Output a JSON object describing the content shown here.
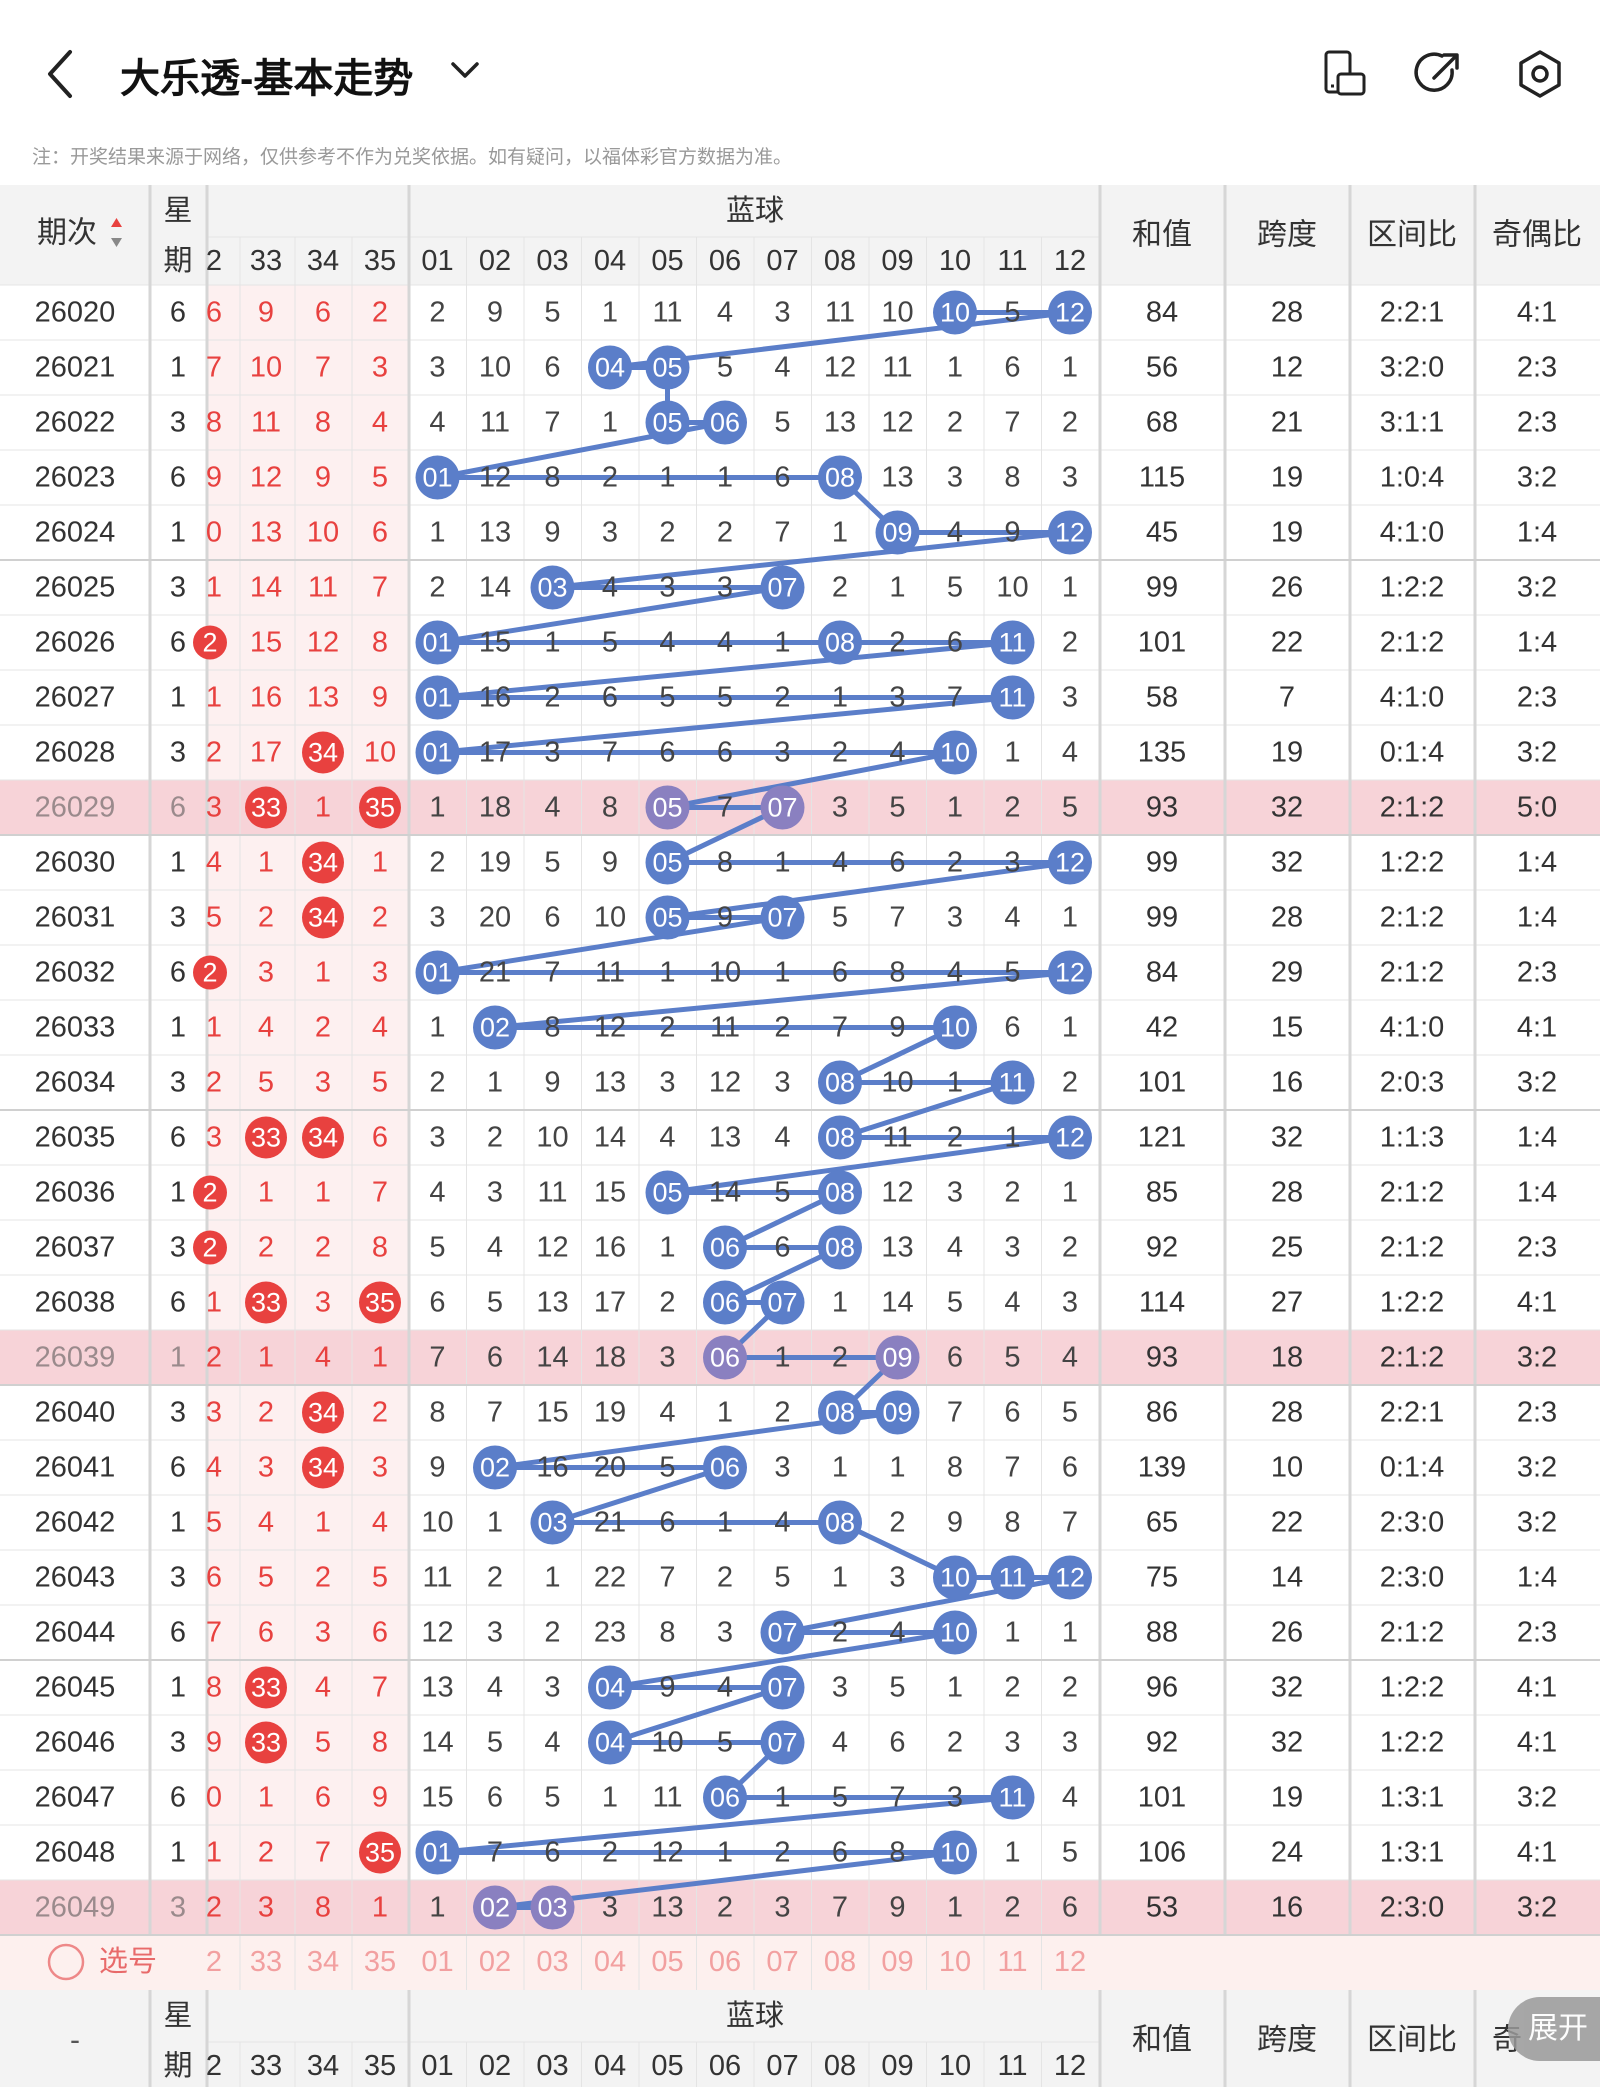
{
  "header": {
    "title": "大乐透-基本走势",
    "note": "注：开奖结果来源于网络，仅供参考不作为兑奖依据。如有疑问，以福体彩官方数据为准。",
    "icons": [
      "back-icon",
      "chevron-down-icon",
      "orientation-icon",
      "share-icon",
      "settings-icon"
    ]
  },
  "table": {
    "head_period": "期次",
    "head_weekday": [
      "星",
      "期"
    ],
    "head_blue": "蓝球",
    "head_sum": "和值",
    "head_span": "跨度",
    "head_zone": "区间比",
    "head_oddeven": "奇偶比",
    "head_oddeven_partial": "奇",
    "red_partial_header": "2",
    "red_headers": [
      "33",
      "34",
      "35"
    ],
    "blue_headers": [
      "01",
      "02",
      "03",
      "04",
      "05",
      "06",
      "07",
      "08",
      "09",
      "10",
      "11",
      "12"
    ],
    "select_label": "选号",
    "footer_dash": "-",
    "expand_label": "展开",
    "colors": {
      "red": "#e8413f",
      "blue": "#5b7ec9",
      "highlight": "#f7d3d8",
      "redbg": "#fdf0f0",
      "line": "#5b7ec9"
    },
    "rows": [
      {
        "p": "26020",
        "w": "6",
        "r": [
          "6",
          "9",
          "6",
          "2"
        ],
        "rh": [
          0,
          0,
          0,
          0
        ],
        "b": [
          "2",
          "9",
          "5",
          "1",
          "11",
          "4",
          "3",
          "11",
          "10",
          "10",
          "5",
          "12"
        ],
        "s": "84",
        "k": "28",
        "z": "2:2:1",
        "o": "4:1",
        "hl": false
      },
      {
        "p": "26021",
        "w": "1",
        "r": [
          "7",
          "10",
          "7",
          "3"
        ],
        "rh": [
          0,
          0,
          0,
          0
        ],
        "b": [
          "3",
          "10",
          "6",
          "04",
          "05",
          "5",
          "4",
          "12",
          "11",
          "1",
          "6",
          "1"
        ],
        "s": "56",
        "k": "12",
        "z": "3:2:0",
        "o": "2:3",
        "hl": false
      },
      {
        "p": "26022",
        "w": "3",
        "r": [
          "8",
          "11",
          "8",
          "4"
        ],
        "rh": [
          0,
          0,
          0,
          0
        ],
        "b": [
          "4",
          "11",
          "7",
          "1",
          "05",
          "06",
          "5",
          "13",
          "12",
          "2",
          "7",
          "2"
        ],
        "s": "68",
        "k": "21",
        "z": "3:1:1",
        "o": "2:3",
        "hl": false
      },
      {
        "p": "26023",
        "w": "6",
        "r": [
          "9",
          "12",
          "9",
          "5"
        ],
        "rh": [
          0,
          0,
          0,
          0
        ],
        "b": [
          "01",
          "12",
          "8",
          "2",
          "1",
          "1",
          "6",
          "08",
          "13",
          "3",
          "8",
          "3"
        ],
        "s": "115",
        "k": "19",
        "z": "1:0:4",
        "o": "3:2",
        "hl": false
      },
      {
        "p": "26024",
        "w": "1",
        "r": [
          "0",
          "13",
          "10",
          "6"
        ],
        "rh": [
          0,
          0,
          0,
          0
        ],
        "b": [
          "1",
          "13",
          "9",
          "3",
          "2",
          "2",
          "7",
          "1",
          "09",
          "4",
          "9",
          "12"
        ],
        "s": "45",
        "k": "19",
        "z": "4:1:0",
        "o": "1:4",
        "hl": false
      },
      {
        "p": "26025",
        "w": "3",
        "r": [
          "1",
          "14",
          "11",
          "7"
        ],
        "rh": [
          0,
          0,
          0,
          0
        ],
        "b": [
          "2",
          "14",
          "03",
          "4",
          "3",
          "3",
          "07",
          "2",
          "1",
          "5",
          "10",
          "1"
        ],
        "s": "99",
        "k": "26",
        "z": "1:2:2",
        "o": "3:2",
        "hl": false
      },
      {
        "p": "26026",
        "w": "6",
        "r": [
          "2",
          "15",
          "12",
          "8"
        ],
        "rh": [
          1,
          0,
          0,
          0
        ],
        "b": [
          "01",
          "15",
          "1",
          "5",
          "4",
          "4",
          "1",
          "08",
          "2",
          "6",
          "11",
          "2"
        ],
        "s": "101",
        "k": "22",
        "z": "2:1:2",
        "o": "1:4",
        "hl": false
      },
      {
        "p": "26027",
        "w": "1",
        "r": [
          "1",
          "16",
          "13",
          "9"
        ],
        "rh": [
          0,
          0,
          0,
          0
        ],
        "b": [
          "01",
          "16",
          "2",
          "6",
          "5",
          "5",
          "2",
          "1",
          "3",
          "7",
          "11",
          "3"
        ],
        "s": "58",
        "k": "7",
        "z": "4:1:0",
        "o": "2:3",
        "hl": false
      },
      {
        "p": "26028",
        "w": "3",
        "r": [
          "2",
          "17",
          "34",
          "10"
        ],
        "rh": [
          0,
          0,
          1,
          0
        ],
        "b": [
          "01",
          "17",
          "3",
          "7",
          "6",
          "6",
          "3",
          "2",
          "4",
          "10",
          "1",
          "4"
        ],
        "s": "135",
        "k": "19",
        "z": "0:1:4",
        "o": "3:2",
        "hl": false
      },
      {
        "p": "26029",
        "w": "6",
        "r": [
          "3",
          "33",
          "1",
          "35"
        ],
        "rh": [
          0,
          1,
          0,
          1
        ],
        "b": [
          "1",
          "18",
          "4",
          "8",
          "05",
          "7",
          "07",
          "3",
          "5",
          "1",
          "2",
          "5"
        ],
        "s": "93",
        "k": "32",
        "z": "2:1:2",
        "o": "5:0",
        "hl": true
      },
      {
        "p": "26030",
        "w": "1",
        "r": [
          "4",
          "1",
          "34",
          "1"
        ],
        "rh": [
          0,
          0,
          1,
          0
        ],
        "b": [
          "2",
          "19",
          "5",
          "9",
          "05",
          "8",
          "1",
          "4",
          "6",
          "2",
          "3",
          "12"
        ],
        "s": "99",
        "k": "32",
        "z": "1:2:2",
        "o": "1:4",
        "hl": false
      },
      {
        "p": "26031",
        "w": "3",
        "r": [
          "5",
          "2",
          "34",
          "2"
        ],
        "rh": [
          0,
          0,
          1,
          0
        ],
        "b": [
          "3",
          "20",
          "6",
          "10",
          "05",
          "9",
          "07",
          "5",
          "7",
          "3",
          "4",
          "1"
        ],
        "s": "99",
        "k": "28",
        "z": "2:1:2",
        "o": "1:4",
        "hl": false
      },
      {
        "p": "26032",
        "w": "6",
        "r": [
          "2",
          "3",
          "1",
          "3"
        ],
        "rh": [
          1,
          0,
          0,
          0
        ],
        "b": [
          "01",
          "21",
          "7",
          "11",
          "1",
          "10",
          "1",
          "6",
          "8",
          "4",
          "5",
          "12"
        ],
        "s": "84",
        "k": "29",
        "z": "2:1:2",
        "o": "2:3",
        "hl": false
      },
      {
        "p": "26033",
        "w": "1",
        "r": [
          "1",
          "4",
          "2",
          "4"
        ],
        "rh": [
          0,
          0,
          0,
          0
        ],
        "b": [
          "1",
          "02",
          "8",
          "12",
          "2",
          "11",
          "2",
          "7",
          "9",
          "10",
          "6",
          "1"
        ],
        "s": "42",
        "k": "15",
        "z": "4:1:0",
        "o": "4:1",
        "hl": false
      },
      {
        "p": "26034",
        "w": "3",
        "r": [
          "2",
          "5",
          "3",
          "5"
        ],
        "rh": [
          0,
          0,
          0,
          0
        ],
        "b": [
          "2",
          "1",
          "9",
          "13",
          "3",
          "12",
          "3",
          "08",
          "10",
          "1",
          "11",
          "2"
        ],
        "s": "101",
        "k": "16",
        "z": "2:0:3",
        "o": "3:2",
        "hl": false
      },
      {
        "p": "26035",
        "w": "6",
        "r": [
          "3",
          "33",
          "34",
          "6"
        ],
        "rh": [
          0,
          1,
          1,
          0
        ],
        "b": [
          "3",
          "2",
          "10",
          "14",
          "4",
          "13",
          "4",
          "08",
          "11",
          "2",
          "1",
          "12"
        ],
        "s": "121",
        "k": "32",
        "z": "1:1:3",
        "o": "1:4",
        "hl": false
      },
      {
        "p": "26036",
        "w": "1",
        "r": [
          "2",
          "1",
          "1",
          "7"
        ],
        "rh": [
          1,
          0,
          0,
          0
        ],
        "b": [
          "4",
          "3",
          "11",
          "15",
          "05",
          "14",
          "5",
          "08",
          "12",
          "3",
          "2",
          "1"
        ],
        "s": "85",
        "k": "28",
        "z": "2:1:2",
        "o": "1:4",
        "hl": false
      },
      {
        "p": "26037",
        "w": "3",
        "r": [
          "2",
          "2",
          "2",
          "8"
        ],
        "rh": [
          1,
          0,
          0,
          0
        ],
        "b": [
          "5",
          "4",
          "12",
          "16",
          "1",
          "06",
          "6",
          "08",
          "13",
          "4",
          "3",
          "2"
        ],
        "s": "92",
        "k": "25",
        "z": "2:1:2",
        "o": "2:3",
        "hl": false
      },
      {
        "p": "26038",
        "w": "6",
        "r": [
          "1",
          "33",
          "3",
          "35"
        ],
        "rh": [
          0,
          1,
          0,
          1
        ],
        "b": [
          "6",
          "5",
          "13",
          "17",
          "2",
          "06",
          "07",
          "1",
          "14",
          "5",
          "4",
          "3"
        ],
        "s": "114",
        "k": "27",
        "z": "1:2:2",
        "o": "4:1",
        "hl": false
      },
      {
        "p": "26039",
        "w": "1",
        "r": [
          "2",
          "1",
          "4",
          "1"
        ],
        "rh": [
          0,
          0,
          0,
          0
        ],
        "b": [
          "7",
          "6",
          "14",
          "18",
          "3",
          "06",
          "1",
          "2",
          "09",
          "6",
          "5",
          "4"
        ],
        "s": "93",
        "k": "18",
        "z": "2:1:2",
        "o": "3:2",
        "hl": true
      },
      {
        "p": "26040",
        "w": "3",
        "r": [
          "3",
          "2",
          "34",
          "2"
        ],
        "rh": [
          0,
          0,
          1,
          0
        ],
        "b": [
          "8",
          "7",
          "15",
          "19",
          "4",
          "1",
          "2",
          "08",
          "09",
          "7",
          "6",
          "5"
        ],
        "s": "86",
        "k": "28",
        "z": "2:2:1",
        "o": "2:3",
        "hl": false
      },
      {
        "p": "26041",
        "w": "6",
        "r": [
          "4",
          "3",
          "34",
          "3"
        ],
        "rh": [
          0,
          0,
          1,
          0
        ],
        "b": [
          "9",
          "02",
          "16",
          "20",
          "5",
          "06",
          "3",
          "1",
          "1",
          "8",
          "7",
          "6"
        ],
        "s": "139",
        "k": "10",
        "z": "0:1:4",
        "o": "3:2",
        "hl": false
      },
      {
        "p": "26042",
        "w": "1",
        "r": [
          "5",
          "4",
          "1",
          "4"
        ],
        "rh": [
          0,
          0,
          0,
          0
        ],
        "b": [
          "10",
          "1",
          "03",
          "21",
          "6",
          "1",
          "4",
          "08",
          "2",
          "9",
          "8",
          "7"
        ],
        "s": "65",
        "k": "22",
        "z": "2:3:0",
        "o": "3:2",
        "hl": false
      },
      {
        "p": "26043",
        "w": "3",
        "r": [
          "6",
          "5",
          "2",
          "5"
        ],
        "rh": [
          0,
          0,
          0,
          0
        ],
        "b": [
          "11",
          "2",
          "1",
          "22",
          "7",
          "2",
          "5",
          "1",
          "3",
          "10",
          "11",
          "12"
        ],
        "s": "75",
        "k": "14",
        "z": "2:3:0",
        "o": "1:4",
        "hl": false
      },
      {
        "p": "26044",
        "w": "6",
        "r": [
          "7",
          "6",
          "3",
          "6"
        ],
        "rh": [
          0,
          0,
          0,
          0
        ],
        "b": [
          "12",
          "3",
          "2",
          "23",
          "8",
          "3",
          "07",
          "2",
          "4",
          "10",
          "1",
          "1"
        ],
        "s": "88",
        "k": "26",
        "z": "2:1:2",
        "o": "2:3",
        "hl": false
      },
      {
        "p": "26045",
        "w": "1",
        "r": [
          "8",
          "33",
          "4",
          "7"
        ],
        "rh": [
          0,
          1,
          0,
          0
        ],
        "b": [
          "13",
          "4",
          "3",
          "04",
          "9",
          "4",
          "07",
          "3",
          "5",
          "1",
          "2",
          "2"
        ],
        "s": "96",
        "k": "32",
        "z": "1:2:2",
        "o": "4:1",
        "hl": false
      },
      {
        "p": "26046",
        "w": "3",
        "r": [
          "9",
          "33",
          "5",
          "8"
        ],
        "rh": [
          0,
          1,
          0,
          0
        ],
        "b": [
          "14",
          "5",
          "4",
          "04",
          "10",
          "5",
          "07",
          "4",
          "6",
          "2",
          "3",
          "3"
        ],
        "s": "92",
        "k": "32",
        "z": "1:2:2",
        "o": "4:1",
        "hl": false
      },
      {
        "p": "26047",
        "w": "6",
        "r": [
          "0",
          "1",
          "6",
          "9"
        ],
        "rh": [
          0,
          0,
          0,
          0
        ],
        "b": [
          "15",
          "6",
          "5",
          "1",
          "11",
          "06",
          "1",
          "5",
          "7",
          "3",
          "11",
          "4"
        ],
        "s": "101",
        "k": "19",
        "z": "1:3:1",
        "o": "3:2",
        "hl": false
      },
      {
        "p": "26048",
        "w": "1",
        "r": [
          "1",
          "2",
          "7",
          "35"
        ],
        "rh": [
          0,
          0,
          0,
          1
        ],
        "b": [
          "01",
          "7",
          "6",
          "2",
          "12",
          "1",
          "2",
          "6",
          "8",
          "10",
          "1",
          "5"
        ],
        "s": "106",
        "k": "24",
        "z": "1:3:1",
        "o": "4:1",
        "hl": false
      },
      {
        "p": "26049",
        "w": "3",
        "r": [
          "2",
          "3",
          "8",
          "1"
        ],
        "rh": [
          0,
          0,
          0,
          0
        ],
        "b": [
          "1",
          "02",
          "03",
          "3",
          "13",
          "2",
          "3",
          "7",
          "9",
          "1",
          "2",
          "6"
        ],
        "s": "53",
        "k": "16",
        "z": "2:3:0",
        "o": "3:2",
        "hl": true
      }
    ]
  }
}
